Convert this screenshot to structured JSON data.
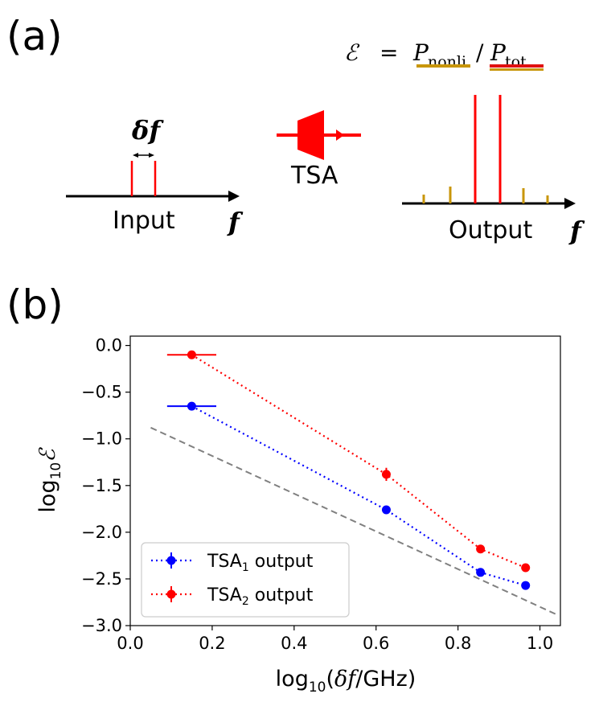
{
  "panel_a": {
    "label": "(a)",
    "input_label": "Input",
    "output_label": "Output",
    "freq_symbol": "f",
    "delta_f_label": "δf",
    "amplifier_label": "TSA",
    "formula": {
      "lhs": "ℰ",
      "equals": "=",
      "numerator": "P",
      "numerator_sub": "nonli",
      "slash": "/",
      "denominator": "P",
      "denominator_sub": "tot"
    }
  },
  "panel_b": {
    "label": "(b)"
  },
  "chart_data": {
    "type": "scatter",
    "title": "",
    "xlabel": "log10(δf/GHz)",
    "ylabel": "log10ℰ",
    "xlim": [
      0.0,
      1.05
    ],
    "ylim": [
      -3.0,
      0.1
    ],
    "xticks": [
      "0.0",
      "0.2",
      "0.4",
      "0.6",
      "0.8",
      "1.0"
    ],
    "yticks": [
      "0.0",
      "-0.5",
      "-1.0",
      "-1.5",
      "-2.0",
      "-2.5",
      "-3.0"
    ],
    "legend_position": "lower-left",
    "series": [
      {
        "name": "TSA1 output",
        "legend_main": "TSA",
        "legend_sub": "1",
        "legend_rest": " output",
        "color": "#0000ff",
        "linestyle": "dotted",
        "x": [
          0.15,
          0.625,
          0.855,
          0.965
        ],
        "y": [
          -0.65,
          -1.76,
          -2.43,
          -2.57
        ],
        "xerr": [
          0.06,
          0.0,
          0.0,
          0.0
        ],
        "yerr": [
          0.0,
          0.0,
          0.0,
          0.0
        ]
      },
      {
        "name": "TSA2 output",
        "legend_main": "TSA",
        "legend_sub": "2",
        "legend_rest": " output",
        "color": "#ff0000",
        "linestyle": "dotted",
        "x": [
          0.15,
          0.625,
          0.855,
          0.965
        ],
        "y": [
          -0.1,
          -1.38,
          -2.18,
          -2.38
        ],
        "xerr": [
          0.06,
          0.0,
          0.0,
          0.0
        ],
        "yerr": [
          0.0,
          0.07,
          0.0,
          0.04
        ]
      },
      {
        "name": "reference slope",
        "color": "#808080",
        "linestyle": "dashed",
        "x": [
          0.05,
          1.04
        ],
        "y": [
          -0.88,
          -2.88
        ]
      }
    ]
  },
  "colors": {
    "red": "#ff0000",
    "gold": "#c8960a",
    "black": "#000000"
  }
}
